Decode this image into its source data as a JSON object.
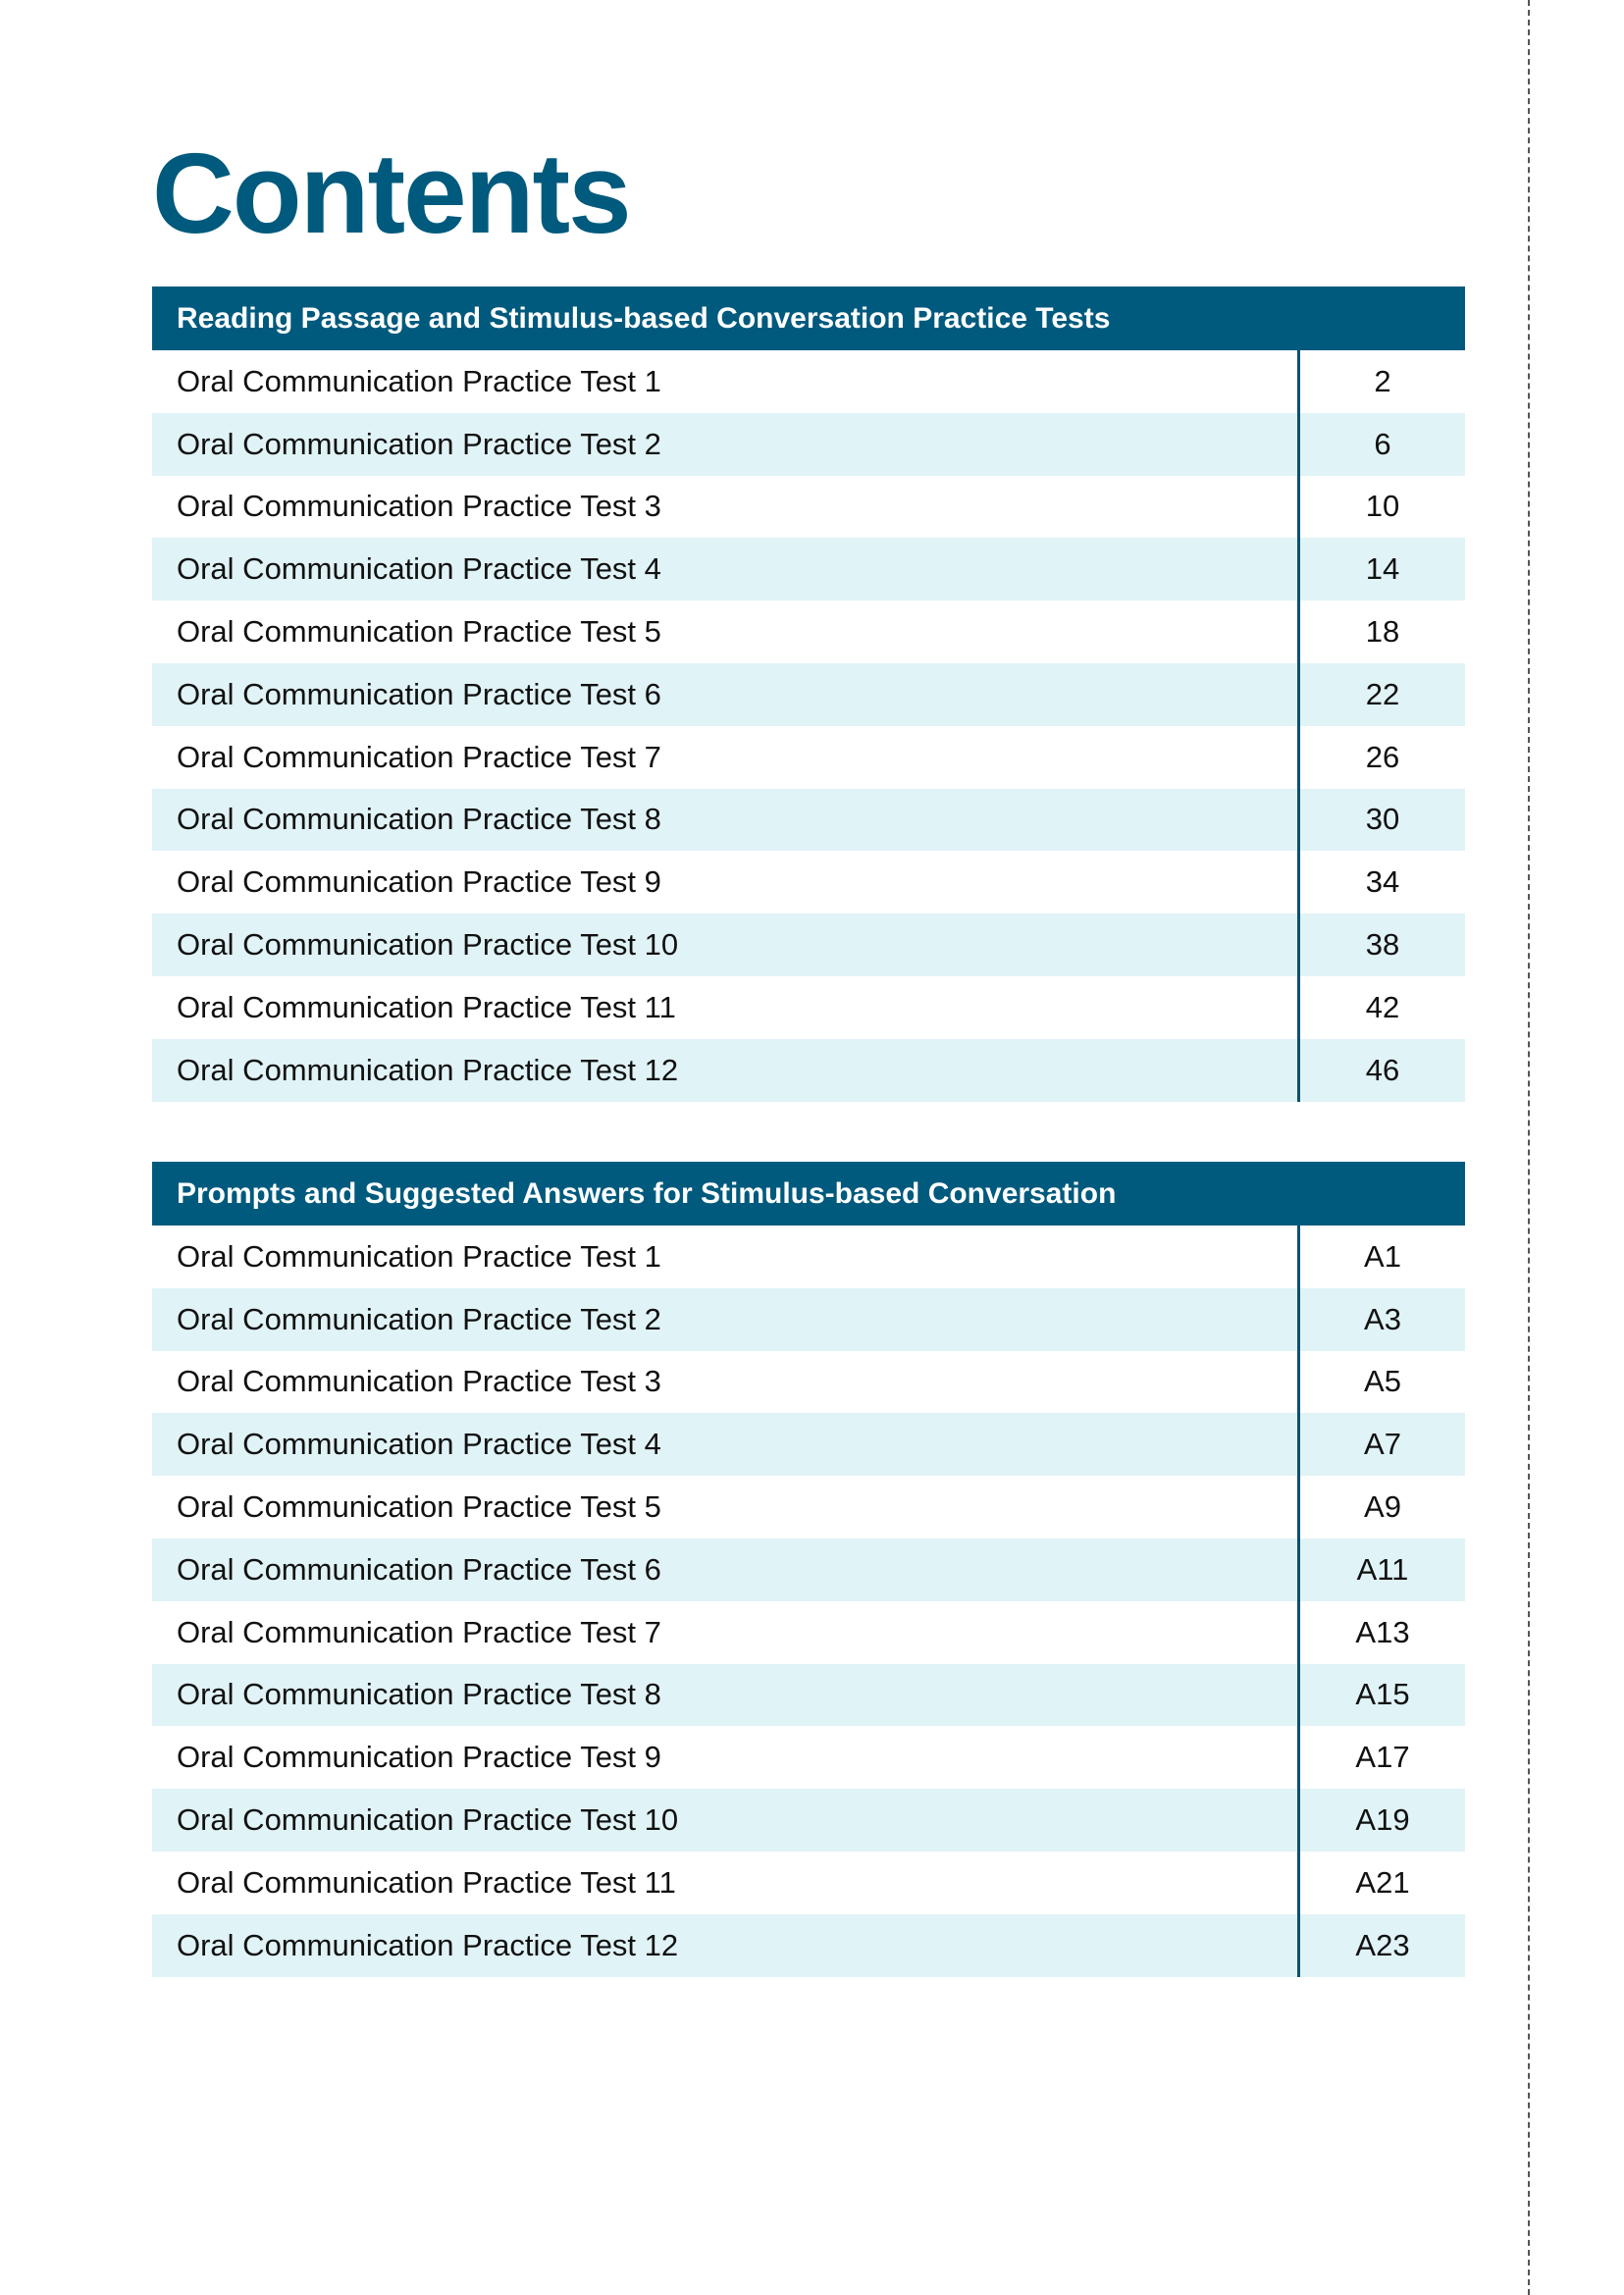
{
  "title": "Contents",
  "colors": {
    "accent": "#005a7d",
    "stripe": "#e0f3f7"
  },
  "sections": [
    {
      "heading": "Reading Passage and Stimulus-based Conversation Practice Tests",
      "rows": [
        {
          "label": "Oral Communication Practice Test 1",
          "page": "2"
        },
        {
          "label": "Oral Communication Practice Test 2",
          "page": "6"
        },
        {
          "label": "Oral Communication Practice Test 3",
          "page": "10"
        },
        {
          "label": "Oral Communication Practice Test 4",
          "page": "14"
        },
        {
          "label": "Oral Communication Practice Test 5",
          "page": "18"
        },
        {
          "label": "Oral Communication Practice Test 6",
          "page": "22"
        },
        {
          "label": "Oral Communication Practice Test 7",
          "page": "26"
        },
        {
          "label": "Oral Communication Practice Test 8",
          "page": "30"
        },
        {
          "label": "Oral Communication Practice Test 9",
          "page": "34"
        },
        {
          "label": "Oral Communication Practice Test 10",
          "page": "38"
        },
        {
          "label": "Oral Communication Practice Test 11",
          "page": "42"
        },
        {
          "label": "Oral Communication Practice Test 12",
          "page": "46"
        }
      ]
    },
    {
      "heading": "Prompts and Suggested Answers for Stimulus-based Conversation",
      "rows": [
        {
          "label": "Oral Communication Practice Test 1",
          "page": "A1"
        },
        {
          "label": "Oral Communication Practice Test 2",
          "page": "A3"
        },
        {
          "label": "Oral Communication Practice Test 3",
          "page": "A5"
        },
        {
          "label": "Oral Communication Practice Test 4",
          "page": "A7"
        },
        {
          "label": "Oral Communication Practice Test 5",
          "page": "A9"
        },
        {
          "label": "Oral Communication Practice Test 6",
          "page": "A11"
        },
        {
          "label": "Oral Communication Practice Test 7",
          "page": "A13"
        },
        {
          "label": "Oral Communication Practice Test 8",
          "page": "A15"
        },
        {
          "label": "Oral Communication Practice Test 9",
          "page": "A17"
        },
        {
          "label": "Oral Communication Practice Test 10",
          "page": "A19"
        },
        {
          "label": "Oral Communication Practice Test 11",
          "page": "A21"
        },
        {
          "label": "Oral Communication Practice Test 12",
          "page": "A23"
        }
      ]
    }
  ]
}
